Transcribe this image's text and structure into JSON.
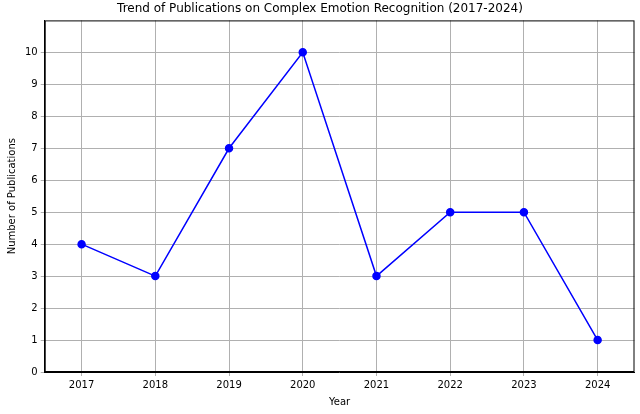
{
  "chart_data": {
    "type": "line",
    "title": "Trend of Publications on Complex Emotion Recognition (2017-2024)",
    "x_label": "Year",
    "y_label": "Number of Publications",
    "categories": [
      "2017",
      "2018",
      "2019",
      "2020",
      "2021",
      "2022",
      "2023",
      "2024"
    ],
    "values": [
      4,
      3,
      7,
      10,
      3,
      5,
      5,
      1
    ],
    "color": "#0000ff",
    "marker": "circle",
    "line_style": "solid",
    "ylim": [
      0,
      11
    ],
    "yticks": [
      0,
      1,
      2,
      3,
      4,
      5,
      6,
      7,
      8,
      9,
      10
    ],
    "grid": true
  }
}
